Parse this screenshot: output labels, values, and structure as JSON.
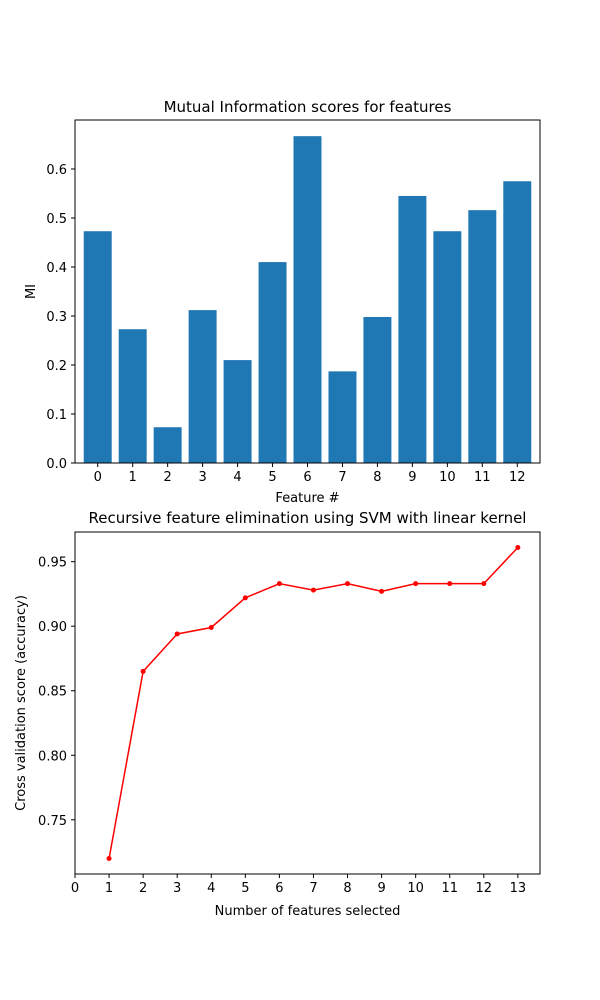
{
  "chart_data": [
    {
      "type": "bar",
      "title": "Mutual Information scores for features",
      "xlabel": "Feature #",
      "ylabel": "MI",
      "color": "#1f77b4",
      "categories": [
        "0",
        "1",
        "2",
        "3",
        "4",
        "5",
        "6",
        "7",
        "8",
        "9",
        "10",
        "11",
        "12"
      ],
      "values": [
        0.473,
        0.273,
        0.073,
        0.312,
        0.21,
        0.41,
        0.667,
        0.187,
        0.298,
        0.545,
        0.473,
        0.516,
        0.575
      ],
      "ylim": [
        0,
        0.7
      ],
      "yticks": [
        0.0,
        0.1,
        0.2,
        0.3,
        0.4,
        0.5,
        0.6
      ],
      "ytick_labels": [
        "0.0",
        "0.1",
        "0.2",
        "0.3",
        "0.4",
        "0.5",
        "0.6"
      ]
    },
    {
      "type": "line",
      "title": "Recursive feature elimination using SVM with linear kernel",
      "xlabel": "Number of features selected",
      "ylabel": "Cross validation score (accuracy)",
      "color": "#ff0000",
      "x": [
        1,
        2,
        3,
        4,
        5,
        6,
        7,
        8,
        9,
        10,
        11,
        12,
        13
      ],
      "values": [
        0.72,
        0.865,
        0.894,
        0.899,
        0.922,
        0.933,
        0.928,
        0.933,
        0.927,
        0.933,
        0.933,
        0.933,
        0.961
      ],
      "xlim": [
        0,
        13.65
      ],
      "ylim": [
        0.708,
        0.973
      ],
      "xticks": [
        0,
        1,
        2,
        3,
        4,
        5,
        6,
        7,
        8,
        9,
        10,
        11,
        12,
        13
      ],
      "xtick_labels": [
        "0",
        "1",
        "2",
        "3",
        "4",
        "5",
        "6",
        "7",
        "8",
        "9",
        "10",
        "11",
        "12",
        "13"
      ],
      "yticks": [
        0.75,
        0.8,
        0.85,
        0.9,
        0.95
      ],
      "ytick_labels": [
        "0.75",
        "0.80",
        "0.85",
        "0.90",
        "0.95"
      ]
    }
  ]
}
